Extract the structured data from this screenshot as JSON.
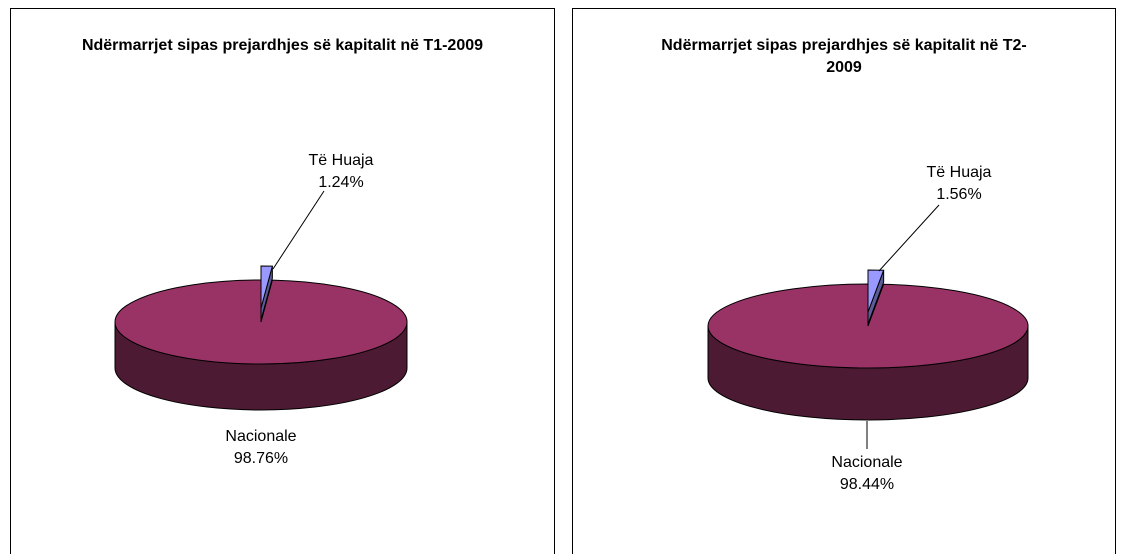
{
  "chart_data": [
    {
      "type": "pie",
      "title": "Ndërmarrjet sipas prejardhjes së kapitalit në  T1-2009",
      "categories": [
        "Të Huaja",
        "Nacionale"
      ],
      "values": [
        1.24,
        98.76
      ],
      "value_labels": [
        "1.24%",
        "98.76%"
      ],
      "colors": [
        "#9999ff",
        "#993366"
      ],
      "three_d": true
    },
    {
      "type": "pie",
      "title": "Ndërmarrjet sipas prejardhjes së kapitalit në  T2-2009",
      "categories": [
        "Të Huaja",
        "Nacionale"
      ],
      "values": [
        1.56,
        98.44
      ],
      "value_labels": [
        "1.56%",
        "98.44%"
      ],
      "colors": [
        "#9999ff",
        "#993366"
      ],
      "three_d": true
    }
  ]
}
